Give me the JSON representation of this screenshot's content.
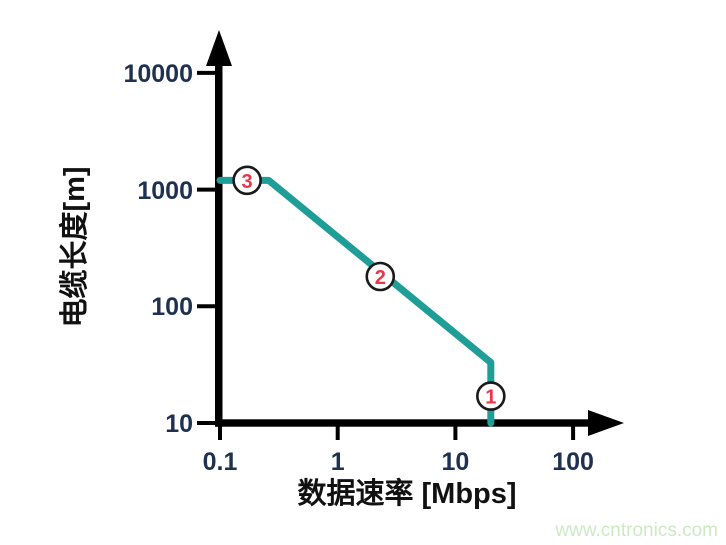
{
  "figure": {
    "watermark": "www.cntronics.com"
  },
  "colors": {
    "background": "#ffffff",
    "axis": "#000000",
    "tick_label": "#1e3150",
    "curve": "#1f9e97",
    "marker_fill": "#ffffff",
    "marker_border": "#1a1a1a",
    "marker_number": "#ee3448",
    "watermark": "#cde9c4"
  },
  "chart_data": {
    "type": "line",
    "title": "",
    "x_axis": {
      "label": "数据速率 [Mbps]",
      "scale": "log",
      "ticks": [
        "0.1",
        "1",
        "10",
        "100"
      ],
      "range": [
        0.1,
        200
      ]
    },
    "y_axis": {
      "label": "电缆长度[m]",
      "scale": "log",
      "ticks": [
        "10",
        "100",
        "1000",
        "10000"
      ],
      "range": [
        10,
        20000
      ]
    },
    "series": [
      {
        "name": "cable-length-vs-data-rate",
        "color": "#1f9e97",
        "points": [
          [
            0.1,
            1200
          ],
          [
            0.26,
            1200
          ],
          [
            20,
            33
          ],
          [
            20,
            10
          ]
        ]
      }
    ],
    "markers": [
      {
        "label": "3",
        "x": 0.17,
        "y": 1200
      },
      {
        "label": "2",
        "x": 2.3,
        "y": 180
      },
      {
        "label": "1",
        "x": 20,
        "y": 17
      }
    ],
    "grid": false,
    "legend": false
  }
}
